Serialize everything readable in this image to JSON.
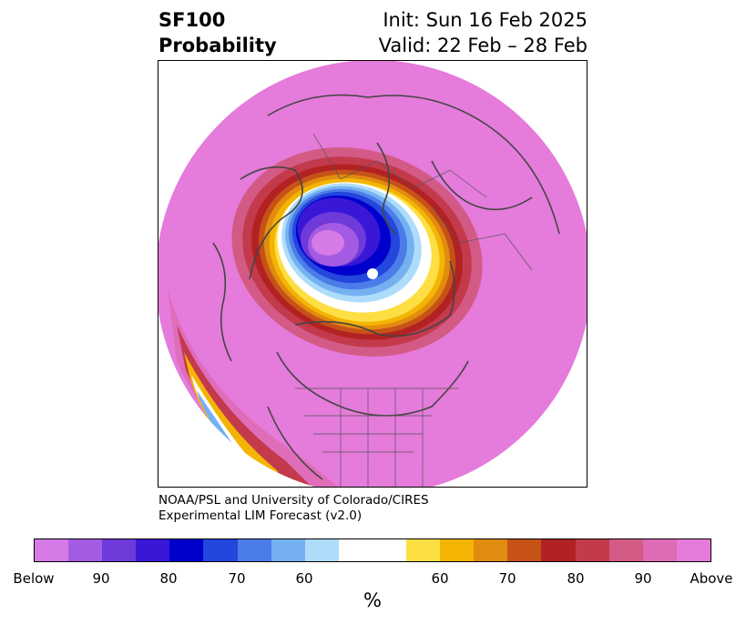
{
  "header": {
    "variable": "SF100",
    "product": "Probability",
    "init": "Init: Sun 16 Feb 2025",
    "valid": "Valid: 22 Feb – 28 Feb"
  },
  "credit": {
    "line1": "NOAA/PSL and University of Colorado/CIRES",
    "line2": "Experimental LIM Forecast (v2.0)"
  },
  "colors": {
    "above_fill": "#e57bdb",
    "coastline": "#444444"
  },
  "colorbar": {
    "unit": "%",
    "segments": [
      "#d67ae8",
      "#a45be3",
      "#6e3ad9",
      "#3a17d6",
      "#0000cc",
      "#2346dc",
      "#4c7ce8",
      "#75b1f1",
      "#aedcfb",
      "#ffffff",
      "#ffffff",
      "#fddf44",
      "#f4b404",
      "#e18b0f",
      "#c65218",
      "#b22222",
      "#c33a4c",
      "#d45a86",
      "#df6bb6",
      "#e57bdb"
    ],
    "labels": [
      "Below",
      "90",
      "80",
      "70",
      "60",
      "60",
      "70",
      "80",
      "90",
      "Above"
    ]
  }
}
